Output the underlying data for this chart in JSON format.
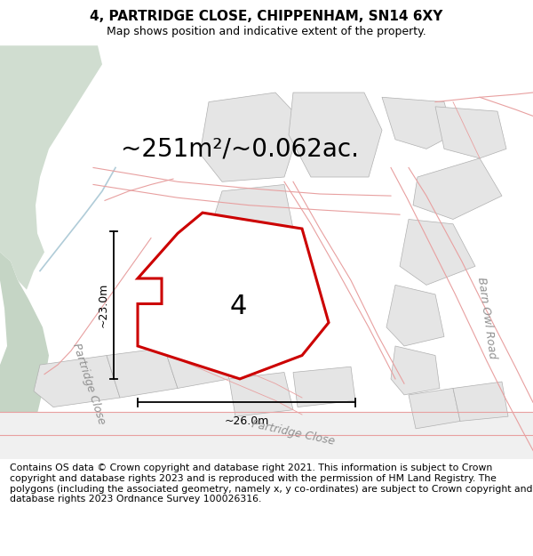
{
  "title": "4, PARTRIDGE CLOSE, CHIPPENHAM, SN14 6XY",
  "subtitle": "Map shows position and indicative extent of the property.",
  "area_text": "~251m²/~0.062ac.",
  "dim_width": "~26.0m",
  "dim_height": "~23.0m",
  "plot_label": "4",
  "footer": "Contains OS data © Crown copyright and database right 2021. This information is subject to Crown copyright and database rights 2023 and is reproduced with the permission of HM Land Registry. The polygons (including the associated geometry, namely x, y co-ordinates) are subject to Crown copyright and database rights 2023 Ordnance Survey 100026316.",
  "bg_white": "#ffffff",
  "green_color": "#c5d5c5",
  "green2_color": "#d0ddd0",
  "blue_line": "#b0ccd8",
  "plot_fill": "#f5f5f5",
  "plot_edge_red": "#cc0000",
  "other_fill": "#e5e5e5",
  "other_edge_gray": "#b0b0b0",
  "road_edge_pink": "#e8a0a0",
  "road_label_color": "#909090",
  "title_fontsize": 11,
  "subtitle_fontsize": 9,
  "area_fontsize": 20,
  "footer_fontsize": 7.8,
  "dim_fontsize": 9,
  "label_fontsize": 9
}
